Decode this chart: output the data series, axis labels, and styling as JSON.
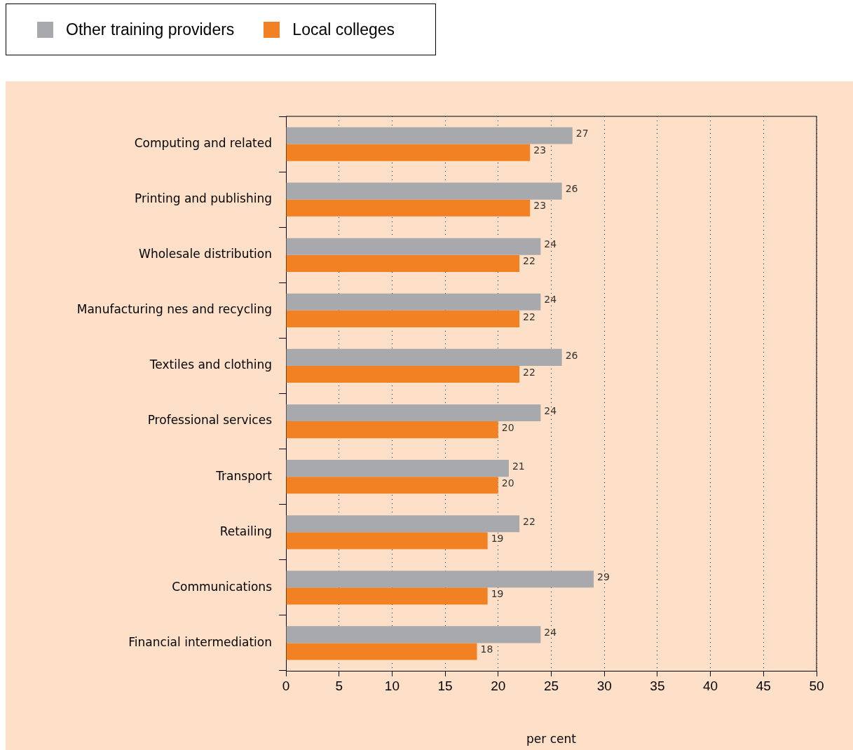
{
  "chart_data": {
    "type": "bar",
    "orientation": "horizontal",
    "xlabel": "per cent",
    "categories": [
      "Computing and related",
      "Printing and publishing",
      "Wholesale distribution",
      "Manufacturing nes and recycling",
      "Textiles and clothing",
      "Professional services",
      "Transport",
      "Retailing",
      "Communications",
      "Financial intermediation"
    ],
    "series": [
      {
        "name": "Other training providers",
        "color": "#a7a9ac",
        "values": [
          27,
          26,
          24,
          24,
          26,
          24,
          21,
          22,
          29,
          24
        ]
      },
      {
        "name": "Local colleges",
        "color": "#f28124",
        "values": [
          23,
          23,
          22,
          22,
          22,
          20,
          20,
          19,
          19,
          18
        ]
      }
    ],
    "xlim": [
      0,
      50
    ],
    "xticks": [
      0,
      5,
      10,
      15,
      20,
      25,
      30,
      35,
      40,
      45,
      50
    ],
    "grid": "x",
    "legend": "top left",
    "data_labels": true
  }
}
